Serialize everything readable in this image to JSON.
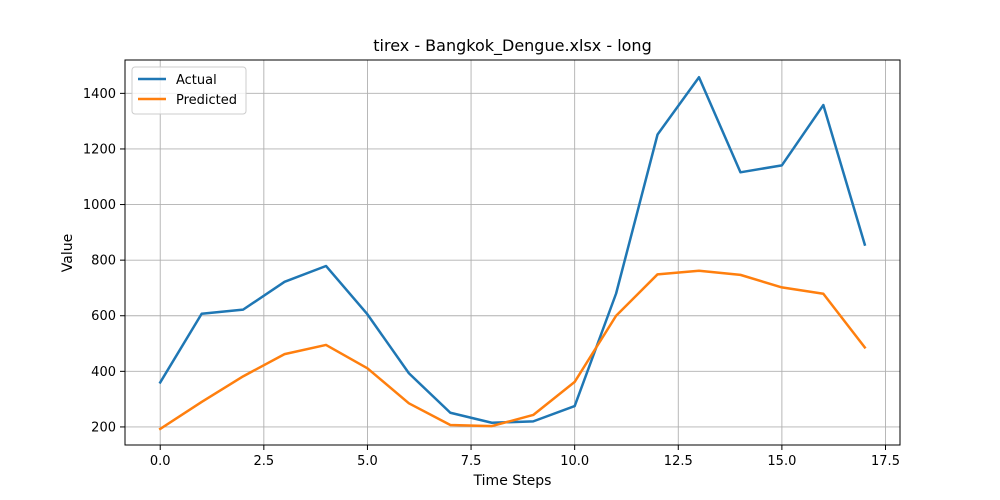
{
  "chart_data": {
    "type": "line",
    "title": "tirex - Bangkok_Dengue.xlsx - long",
    "xlabel": "Time Steps",
    "ylabel": "Value",
    "xlim": [
      -0.85,
      17.85
    ],
    "ylim": [
      135,
      1520
    ],
    "xticks": [
      0.0,
      2.5,
      5.0,
      7.5,
      10.0,
      12.5,
      15.0,
      17.5
    ],
    "xtick_labels": [
      "0.0",
      "2.5",
      "5.0",
      "7.5",
      "10.0",
      "12.5",
      "15.0",
      "17.5"
    ],
    "yticks": [
      200,
      400,
      600,
      800,
      1000,
      1200,
      1400
    ],
    "ytick_labels": [
      "200",
      "400",
      "600",
      "800",
      "1000",
      "1200",
      "1400"
    ],
    "grid": true,
    "legend_position": "top-left",
    "x": [
      0,
      1,
      2,
      3,
      4,
      5,
      6,
      7,
      8,
      9,
      10,
      11,
      12,
      13,
      14,
      15,
      16,
      17
    ],
    "series": [
      {
        "name": "Actual",
        "color": "#1f77b4",
        "values": [
          360,
          607,
          622,
          722,
          779,
          605,
          393,
          251,
          215,
          220,
          275,
          680,
          1252,
          1458,
          1116,
          1141,
          1358,
          856
        ]
      },
      {
        "name": "Predicted",
        "color": "#ff7f0e",
        "values": [
          193,
          290,
          382,
          462,
          495,
          411,
          285,
          207,
          203,
          243,
          362,
          600,
          749,
          762,
          747,
          702,
          679,
          486
        ]
      }
    ]
  }
}
